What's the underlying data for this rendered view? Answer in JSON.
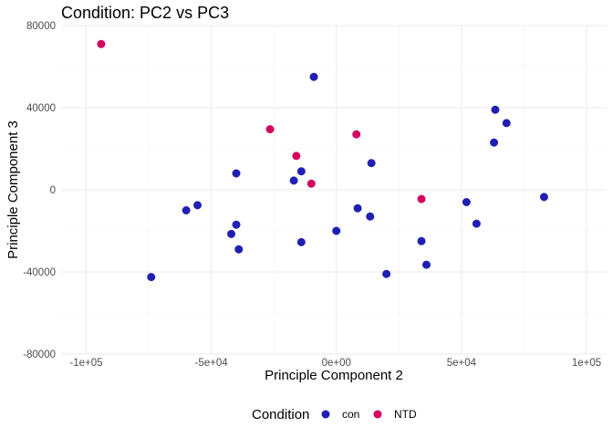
{
  "chart_data": {
    "type": "scatter",
    "title": "Condition: PC2 vs PC3",
    "xlabel": "Principle Component 2",
    "ylabel": "Principle Component 3",
    "xlim": [
      -110000,
      108000
    ],
    "ylim": [
      -80000,
      80000
    ],
    "x_ticks": [
      -100000,
      -50000,
      0,
      50000,
      100000
    ],
    "x_tick_labels": [
      "-1e+05",
      "-5e+04",
      "0e+00",
      "5e+04",
      "1e+05"
    ],
    "y_ticks": [
      -80000,
      -40000,
      0,
      40000,
      80000
    ],
    "y_tick_labels": [
      "-80000",
      "-40000",
      "0",
      "40000",
      "80000"
    ],
    "grid": true,
    "legend": {
      "title": "Condition",
      "position": "bottom"
    },
    "series": [
      {
        "name": "con",
        "color": "#1f1fb4",
        "points": [
          [
            -74000,
            -42500
          ],
          [
            -60000,
            -10000
          ],
          [
            -55500,
            -7500
          ],
          [
            -42000,
            -21500
          ],
          [
            -40000,
            -17000
          ],
          [
            -40000,
            8000
          ],
          [
            -39000,
            -29000
          ],
          [
            -17000,
            4500
          ],
          [
            -14000,
            9000
          ],
          [
            -14000,
            -25500
          ],
          [
            -9000,
            55000
          ],
          [
            0,
            -20000
          ],
          [
            8500,
            -9000
          ],
          [
            13500,
            -13000
          ],
          [
            14000,
            13000
          ],
          [
            20000,
            -41000
          ],
          [
            34000,
            -25000
          ],
          [
            36000,
            -36500
          ],
          [
            52000,
            -6000
          ],
          [
            56000,
            -16500
          ],
          [
            63000,
            23000
          ],
          [
            63500,
            39000
          ],
          [
            68000,
            32500
          ],
          [
            83000,
            -3500
          ]
        ]
      },
      {
        "name": "NTD",
        "color": "#d6005f",
        "points": [
          [
            -94000,
            71000
          ],
          [
            -26500,
            29500
          ],
          [
            -16000,
            16500
          ],
          [
            -10000,
            3000
          ],
          [
            8000,
            27000
          ],
          [
            34000,
            -4500
          ]
        ]
      }
    ]
  }
}
